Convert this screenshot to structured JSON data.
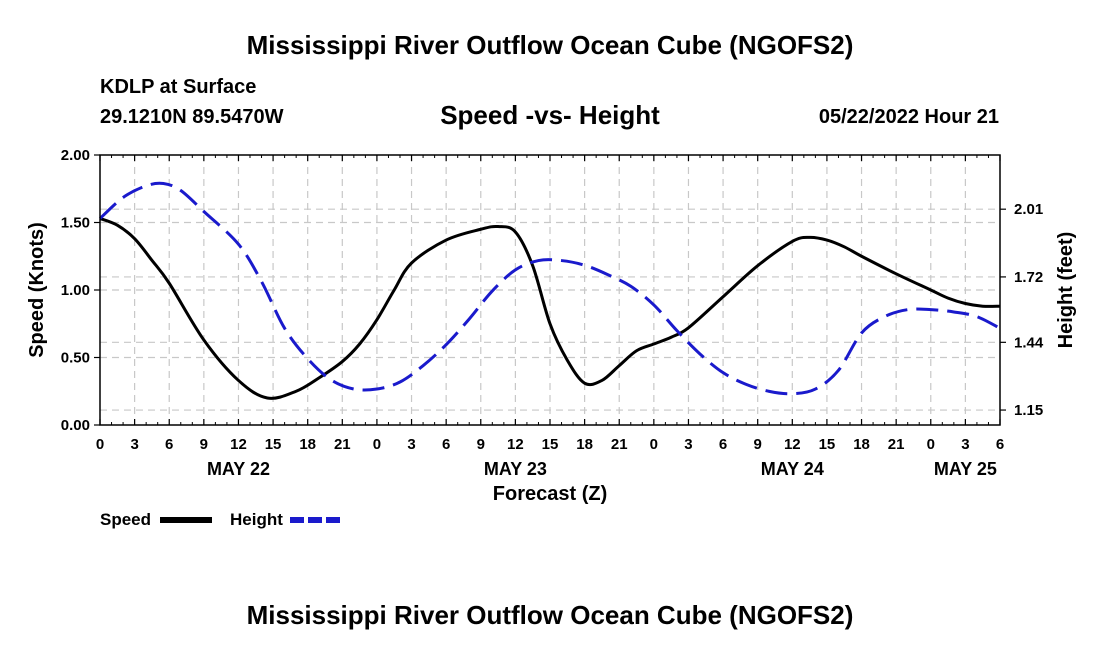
{
  "header": {
    "title": "Mississippi River Outflow Ocean Cube (NGOFS2)",
    "station": "KDLP at Surface",
    "coords": "29.1210N  89.5470W",
    "subtitle": "Speed -vs- Height",
    "datetime": "05/22/2022 Hour 21"
  },
  "footer": {
    "title": "Mississippi River Outflow Ocean Cube (NGOFS2)"
  },
  "chart_data": {
    "type": "line",
    "title": "Speed -vs- Height",
    "xlabel": "Forecast (Z)",
    "ylabel": "Speed (Knots)",
    "y2label": "Height (feet)",
    "xlim": [
      0,
      78
    ],
    "ylim": [
      0,
      2
    ],
    "y2lim": [
      1.086,
      2.242
    ],
    "grid": true,
    "x_tick_labels": [
      "0",
      "3",
      "6",
      "9",
      "12",
      "15",
      "18",
      "21",
      "0",
      "3",
      "6",
      "9",
      "12",
      "15",
      "18",
      "21",
      "0",
      "3",
      "6",
      "9",
      "12",
      "15",
      "18",
      "21",
      "0",
      "3",
      "6"
    ],
    "date_labels": [
      {
        "x": 12,
        "label": "MAY 22"
      },
      {
        "x": 36,
        "label": "MAY 23"
      },
      {
        "x": 60,
        "label": "MAY 24"
      },
      {
        "x": 75,
        "label": "MAY 25"
      }
    ],
    "y_ticks": [
      "0.00",
      "0.50",
      "1.00",
      "1.50",
      "2.00"
    ],
    "y_tick_values": [
      0,
      0.5,
      1.0,
      1.5,
      2.0
    ],
    "y2_ticks": [
      "1.15",
      "1.44",
      "1.72",
      "2.01"
    ],
    "y2_tick_values": [
      1.15,
      1.44,
      1.72,
      2.01
    ],
    "series": [
      {
        "name": "Speed",
        "axis": "left",
        "color": "#000000",
        "style": "solid",
        "x": [
          0,
          1.5,
          3,
          4.5,
          6,
          9,
          12,
          14.5,
          17,
          19,
          21,
          22.5,
          24,
          25.5,
          27,
          30,
          33,
          34.5,
          36,
          37.5,
          39,
          40.5,
          42,
          43.5,
          45,
          46.5,
          48,
          49.5,
          51,
          54,
          57,
          60,
          61.5,
          63,
          64.5,
          66,
          69,
          72,
          73.5,
          75,
          76.5,
          78
        ],
        "values": [
          1.53,
          1.48,
          1.38,
          1.22,
          1.05,
          0.63,
          0.33,
          0.2,
          0.25,
          0.35,
          0.47,
          0.6,
          0.78,
          1.0,
          1.2,
          1.37,
          1.45,
          1.47,
          1.43,
          1.18,
          0.75,
          0.48,
          0.31,
          0.33,
          0.44,
          0.55,
          0.6,
          0.65,
          0.72,
          0.95,
          1.18,
          1.36,
          1.39,
          1.37,
          1.32,
          1.25,
          1.12,
          1.0,
          0.94,
          0.9,
          0.88,
          0.88
        ]
      },
      {
        "name": "Height",
        "axis": "right",
        "color": "#1a1acc",
        "style": "dashed",
        "x": [
          0,
          2,
          4,
          5.5,
          7,
          9,
          12,
          14,
          16,
          18,
          20,
          22,
          24,
          26,
          28,
          30,
          32,
          34,
          36,
          38,
          40,
          42,
          44,
          46,
          48,
          50,
          52,
          54,
          56,
          58,
          60,
          62,
          64,
          66,
          68,
          70,
          72,
          74,
          76,
          78
        ],
        "values": [
          1.97,
          2.06,
          2.11,
          2.12,
          2.09,
          2.0,
          1.86,
          1.7,
          1.5,
          1.37,
          1.28,
          1.24,
          1.24,
          1.27,
          1.34,
          1.43,
          1.54,
          1.66,
          1.75,
          1.79,
          1.79,
          1.77,
          1.73,
          1.68,
          1.6,
          1.49,
          1.39,
          1.31,
          1.26,
          1.23,
          1.22,
          1.24,
          1.32,
          1.48,
          1.55,
          1.58,
          1.58,
          1.57,
          1.55,
          1.5
        ]
      }
    ],
    "legend": [
      {
        "label": "Speed",
        "color": "#000000",
        "style": "solid"
      },
      {
        "label": "Height",
        "color": "#1a1acc",
        "style": "dashed"
      }
    ]
  }
}
